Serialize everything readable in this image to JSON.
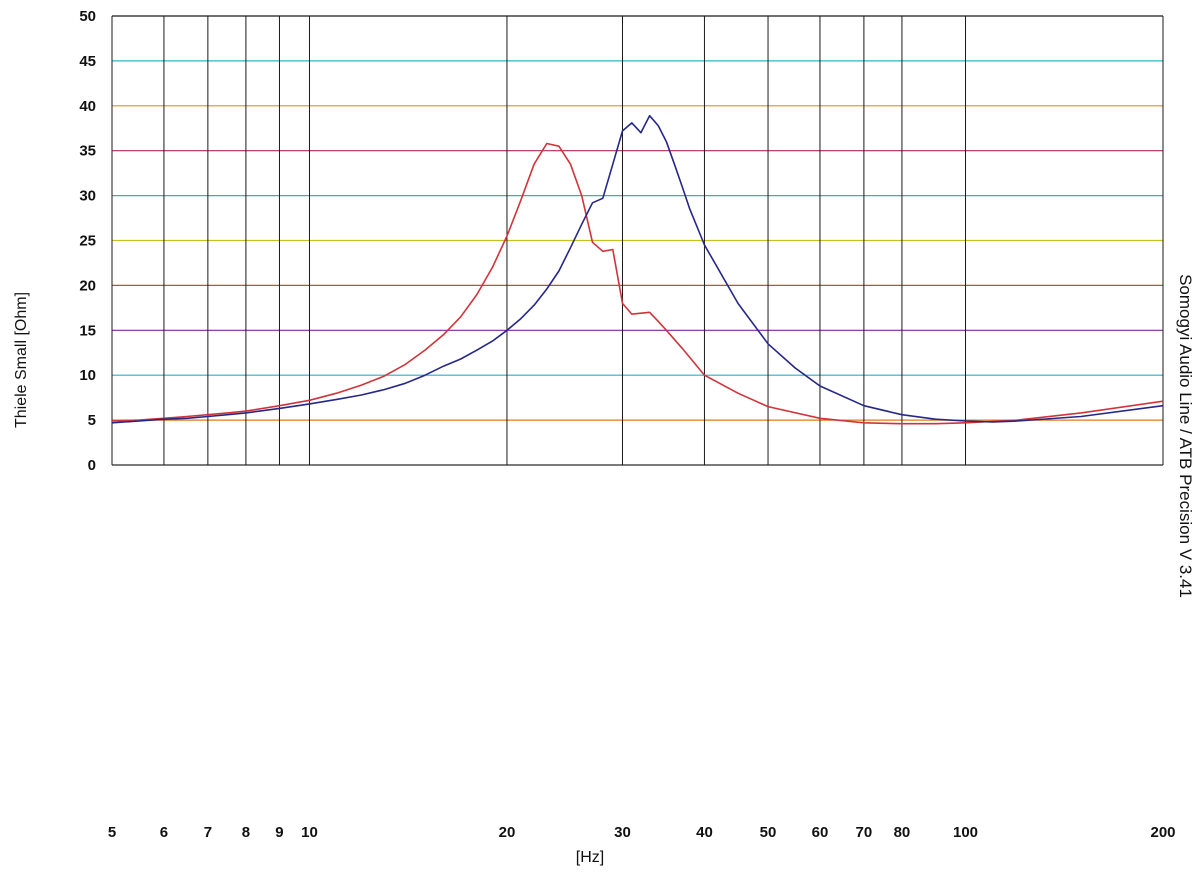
{
  "chart_data": {
    "type": "line",
    "title": "",
    "xlabel": "[Hz]",
    "ylabel": "Thiele Small  [Ohm]",
    "side_label": "Somogyi Audio Line / ATB Precision V 3.41",
    "x_scale": "log",
    "xlim": [
      5,
      200
    ],
    "ylim": [
      0,
      50
    ],
    "grid": true,
    "x_ticks": [
      5,
      6,
      7,
      8,
      9,
      10,
      20,
      30,
      40,
      50,
      60,
      70,
      80,
      100,
      200
    ],
    "x_tick_labels": [
      "5",
      "6",
      "7",
      "8",
      "9",
      "10",
      "20",
      "30",
      "40",
      "50",
      "60",
      "70",
      "80",
      "100",
      "200"
    ],
    "y_ticks": [
      0,
      5,
      10,
      15,
      20,
      25,
      30,
      35,
      40,
      45,
      50
    ],
    "y_tick_labels": [
      "0",
      "5",
      "10",
      "15",
      "20",
      "25",
      "30",
      "35",
      "40",
      "45",
      "50"
    ],
    "colors": {
      "series_red": "#d0343a",
      "series_blue": "#25278a",
      "grid_vertical": "#1a1a1a",
      "grid_horizontal": [
        "#2a2a2a",
        "#e07a1a",
        "#21b5c8",
        "#7a2aa0",
        "#d44a1a",
        "#c8c020",
        "#2bb5c0",
        "#b02a5a",
        "#e09020",
        "#28b8c8",
        "#1a1a1a"
      ]
    },
    "series": [
      {
        "color": "#d0343a",
        "x": [
          5,
          5.5,
          6,
          6.5,
          7,
          7.5,
          8,
          9,
          10,
          11,
          12,
          13,
          14,
          15,
          16,
          17,
          18,
          19,
          20,
          21,
          22,
          23,
          24,
          25,
          26,
          27,
          28,
          29,
          30,
          31,
          32,
          33,
          34,
          35,
          37,
          40,
          45,
          50,
          60,
          70,
          80,
          90,
          100,
          120,
          150,
          200
        ],
        "y": [
          4.9,
          5.0,
          5.2,
          5.4,
          5.6,
          5.8,
          6.0,
          6.6,
          7.2,
          8.0,
          8.9,
          9.9,
          11.2,
          12.8,
          14.5,
          16.5,
          19.0,
          22.0,
          25.5,
          29.5,
          33.5,
          35.8,
          35.5,
          33.5,
          30.0,
          24.8,
          23.8,
          24.0,
          18.0,
          16.8,
          16.9,
          17.0,
          16.0,
          15.0,
          13.0,
          10.0,
          8.0,
          6.5,
          5.2,
          4.7,
          4.6,
          4.6,
          4.7,
          5.0,
          5.8,
          7.1
        ]
      },
      {
        "color": "#25278a",
        "x": [
          5,
          5.5,
          6,
          6.5,
          7,
          7.5,
          8,
          9,
          10,
          11,
          12,
          13,
          14,
          15,
          16,
          17,
          18,
          19,
          20,
          21,
          22,
          23,
          24,
          25,
          26,
          27,
          28,
          29,
          30,
          31,
          32,
          33,
          34,
          35,
          36,
          37,
          38,
          40,
          45,
          50,
          55,
          60,
          70,
          80,
          90,
          100,
          110,
          120,
          150,
          200
        ],
        "y": [
          4.7,
          4.9,
          5.1,
          5.2,
          5.4,
          5.6,
          5.8,
          6.3,
          6.8,
          7.3,
          7.8,
          8.4,
          9.1,
          10.0,
          11.0,
          11.8,
          12.8,
          13.8,
          15.0,
          16.3,
          17.8,
          19.6,
          21.6,
          24.2,
          26.8,
          29.2,
          29.7,
          33.5,
          37.2,
          38.1,
          37.0,
          38.9,
          37.8,
          36.0,
          33.5,
          31.0,
          28.5,
          24.5,
          18.0,
          13.5,
          10.8,
          8.8,
          6.6,
          5.6,
          5.1,
          4.9,
          4.8,
          4.9,
          5.4,
          6.6
        ]
      }
    ]
  }
}
